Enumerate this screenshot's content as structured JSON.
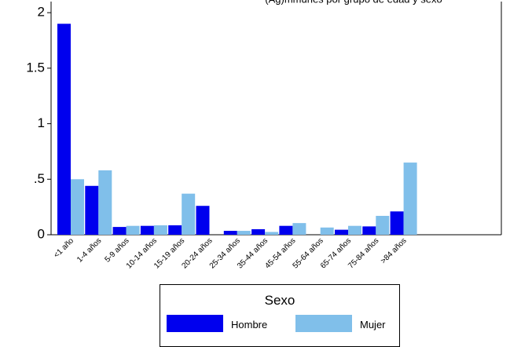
{
  "chart_data": {
    "type": "bar",
    "title": "(Ag)mmunes por grupo de edad y sexo",
    "categories": [
      "<1 año",
      "1-4 años",
      "5-9 años",
      "10-14 años",
      "15-19 años",
      "20-24 años",
      "25-34 años",
      "35-44 años",
      "45-54 años",
      "55-64 años",
      "65-74 años",
      "75-84 años",
      ">84 años"
    ],
    "series": [
      {
        "name": "Hombre",
        "color": "#0000ee",
        "values": [
          1.9,
          0.44,
          0.07,
          0.08,
          0.085,
          0.26,
          0.035,
          0.05,
          0.08,
          0,
          0.045,
          0.075,
          0.21
        ]
      },
      {
        "name": "Mujer",
        "color": "#80bfea",
        "values": [
          0.5,
          0.58,
          0.08,
          0.085,
          0.37,
          0,
          0.035,
          0.025,
          0.105,
          0.065,
          0.08,
          0.17,
          0.65
        ]
      }
    ],
    "yticks": [
      "0",
      ".5",
      "1",
      "1.5",
      "2"
    ],
    "ytick_values": [
      0,
      0.5,
      1,
      1.5,
      2
    ],
    "ylim": [
      0,
      2.1
    ],
    "legend": {
      "title": "Sexo",
      "position": "bottom"
    },
    "grid": false
  }
}
